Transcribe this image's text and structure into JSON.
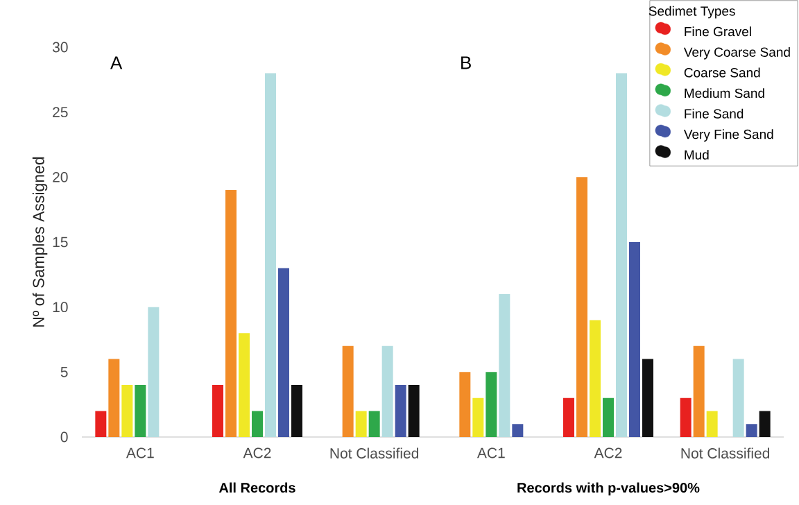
{
  "chart_data": {
    "type": "bar",
    "ylabel": "Nº of Samples Assigned",
    "legend_title": "Sedimet Types",
    "legend": "top right",
    "categories": [
      "AC1",
      "AC2",
      "Not Classified",
      "AC1",
      "AC2",
      "Not Classified"
    ],
    "ylim": [
      0,
      30
    ],
    "yticks": [
      0,
      5,
      10,
      15,
      20,
      25,
      30
    ],
    "annotations": [
      "A",
      "B",
      "All Records",
      "Records with p-values>90%"
    ],
    "series": [
      {
        "name": "Fine Gravel",
        "color": "#e8211f",
        "values": [
          2,
          4,
          0,
          0,
          3,
          3
        ]
      },
      {
        "name": "Very Coarse Sand",
        "color": "#f28c28",
        "values": [
          6,
          19,
          7,
          5,
          20,
          7
        ]
      },
      {
        "name": "Coarse Sand",
        "color": "#f0e826",
        "values": [
          4,
          8,
          2,
          3,
          9,
          2
        ]
      },
      {
        "name": "Medium Sand",
        "color": "#2ea84a",
        "values": [
          4,
          2,
          2,
          5,
          3,
          0
        ]
      },
      {
        "name": "Fine Sand",
        "color": "#b3dde0",
        "values": [
          10,
          28,
          7,
          11,
          28,
          6
        ]
      },
      {
        "name": "Very Fine Sand",
        "color": "#4356a5",
        "values": [
          0,
          13,
          4,
          1,
          15,
          1
        ]
      },
      {
        "name": "Mud",
        "color": "#111111",
        "values": [
          0,
          4,
          4,
          0,
          6,
          2
        ]
      }
    ]
  }
}
